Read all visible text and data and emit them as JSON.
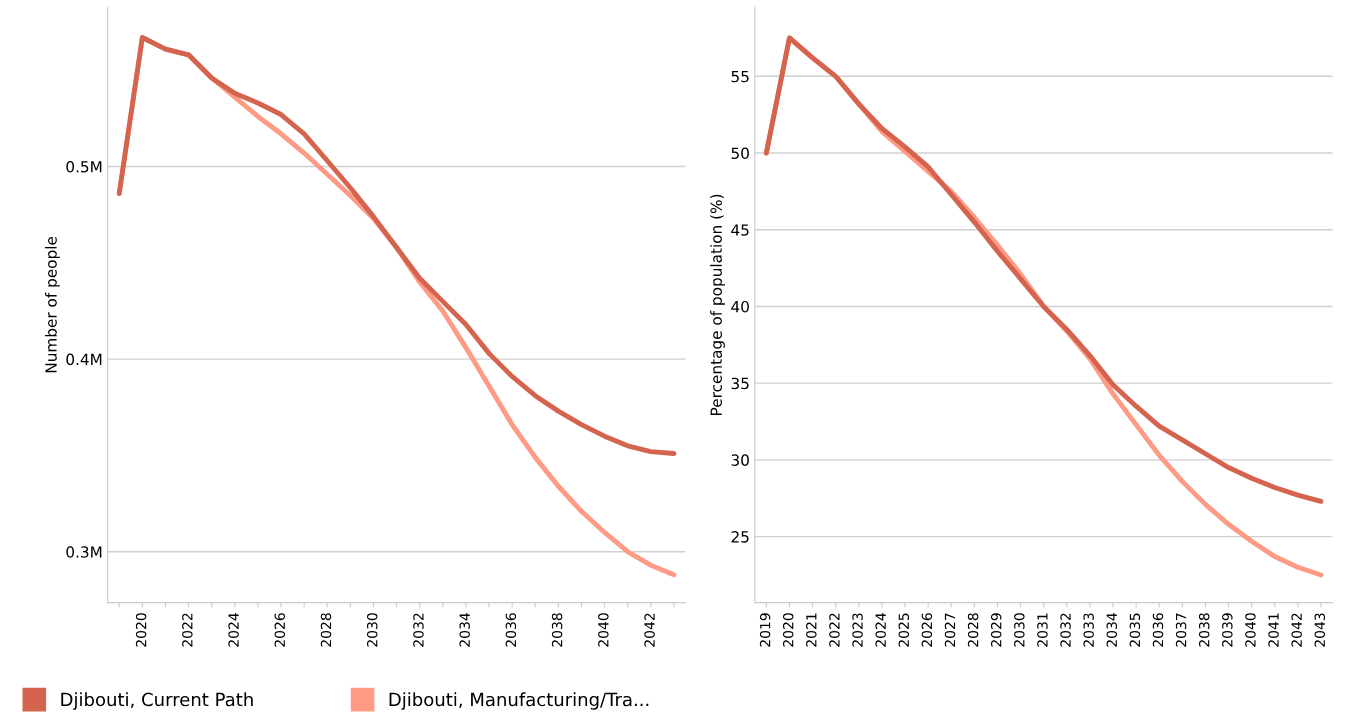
{
  "chart_data": [
    {
      "type": "line",
      "ylabel": "Number of people",
      "categories": [
        null,
        "2020",
        null,
        "2022",
        null,
        "2024",
        null,
        "2026",
        null,
        "2028",
        null,
        "2030",
        null,
        "2032",
        null,
        "2034",
        null,
        "2036",
        null,
        "2038",
        null,
        "2040",
        null,
        "2042",
        null
      ],
      "series": [
        {
          "name": "Djibouti, Current Path",
          "color": "#d4644e",
          "values": [
            0.486,
            0.567,
            0.561,
            0.558,
            0.546,
            0.538,
            0.533,
            0.527,
            0.517,
            0.503,
            0.489,
            0.474,
            0.458,
            0.442,
            0.43,
            0.418,
            0.403,
            0.391,
            0.381,
            0.373,
            0.366,
            0.36,
            0.355,
            0.352,
            0.351
          ]
        },
        {
          "name": "Djibouti, Manufacturing/Tra...",
          "color": "#ff9a85",
          "values": [
            0.486,
            0.567,
            0.561,
            0.558,
            0.546,
            0.536,
            0.526,
            0.517,
            0.507,
            0.496,
            0.485,
            0.473,
            0.458,
            0.44,
            0.425,
            0.406,
            0.386,
            0.366,
            0.349,
            0.334,
            0.321,
            0.31,
            0.3,
            0.293,
            0.288
          ]
        }
      ],
      "ylim": [
        0.2736,
        0.5827
      ],
      "yticks": [
        {
          "value": 0.3,
          "label": "0.3M"
        },
        {
          "value": 0.4,
          "label": "0.4M"
        },
        {
          "value": 0.5,
          "label": "0.5M"
        }
      ],
      "grid": "y",
      "legend": "bottom"
    },
    {
      "type": "line",
      "ylabel": "Percentage of population (%)",
      "categories": [
        "2019",
        "2020",
        "2021",
        "2022",
        "2023",
        "2024",
        "2025",
        "2026",
        "2027",
        "2028",
        "2029",
        "2030",
        "2031",
        "2032",
        "2033",
        "2034",
        "2035",
        "2036",
        "2037",
        "2038",
        "2039",
        "2040",
        "2041",
        "2042",
        "2043"
      ],
      "series": [
        {
          "color": "#d4644e",
          "values": [
            50.0,
            57.5,
            56.2,
            55.0,
            53.2,
            51.6,
            50.4,
            49.1,
            47.3,
            45.5,
            43.6,
            41.8,
            40.0,
            38.5,
            36.8,
            34.9,
            33.5,
            32.2,
            31.3,
            30.4,
            29.5,
            28.8,
            28.2,
            27.7,
            27.3
          ]
        },
        {
          "color": "#ff9a85",
          "values": [
            50.0,
            57.5,
            56.2,
            55.0,
            53.2,
            51.4,
            50.1,
            48.8,
            47.5,
            45.8,
            44.0,
            42.1,
            40.0,
            38.4,
            36.6,
            34.3,
            32.3,
            30.3,
            28.6,
            27.1,
            25.8,
            24.7,
            23.7,
            23.0,
            22.5
          ]
        }
      ],
      "ylim": [
        20.7,
        59.5
      ],
      "yticks": [
        25,
        30,
        35,
        40,
        45,
        50,
        55
      ],
      "grid": "y"
    }
  ]
}
